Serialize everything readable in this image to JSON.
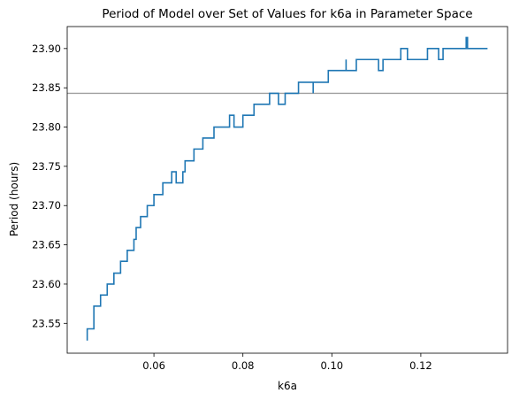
{
  "chart_data": {
    "type": "line",
    "title": "Period of Model over Set of Values for k6a in Parameter Space",
    "xlabel": "k6a",
    "ylabel": "Period (hours)",
    "xlim": [
      0.0405,
      0.1395
    ],
    "ylim": [
      23.512,
      23.928
    ],
    "xticks": [
      {
        "value": 0.06,
        "label": "0.06"
      },
      {
        "value": 0.08,
        "label": "0.08"
      },
      {
        "value": 0.1,
        "label": "0.10"
      },
      {
        "value": 0.12,
        "label": "0.12"
      }
    ],
    "yticks": [
      {
        "value": 23.55,
        "label": "23.55"
      },
      {
        "value": 23.6,
        "label": "23.60"
      },
      {
        "value": 23.65,
        "label": "23.65"
      },
      {
        "value": 23.7,
        "label": "23.70"
      },
      {
        "value": 23.75,
        "label": "23.75"
      },
      {
        "value": 23.8,
        "label": "23.80"
      },
      {
        "value": 23.85,
        "label": "23.85"
      },
      {
        "value": 23.9,
        "label": "23.90"
      }
    ],
    "grid": false,
    "reference_line": {
      "orientation": "horizontal",
      "y": 23.843,
      "color": "#a0a0a0"
    },
    "series": [
      {
        "color": "#1f77b4",
        "points": [
          [
            0.045,
            23.528
          ],
          [
            0.045,
            23.543
          ],
          [
            0.0465,
            23.543
          ],
          [
            0.0465,
            23.572
          ],
          [
            0.048,
            23.572
          ],
          [
            0.048,
            23.586
          ],
          [
            0.0495,
            23.586
          ],
          [
            0.0495,
            23.6
          ],
          [
            0.051,
            23.6
          ],
          [
            0.051,
            23.614
          ],
          [
            0.0525,
            23.614
          ],
          [
            0.0525,
            23.629
          ],
          [
            0.054,
            23.629
          ],
          [
            0.054,
            23.643
          ],
          [
            0.0555,
            23.643
          ],
          [
            0.0555,
            23.657
          ],
          [
            0.056,
            23.657
          ],
          [
            0.056,
            23.672
          ],
          [
            0.057,
            23.672
          ],
          [
            0.057,
            23.686
          ],
          [
            0.0585,
            23.686
          ],
          [
            0.0585,
            23.7
          ],
          [
            0.06,
            23.7
          ],
          [
            0.06,
            23.714
          ],
          [
            0.062,
            23.714
          ],
          [
            0.062,
            23.729
          ],
          [
            0.064,
            23.729
          ],
          [
            0.064,
            23.743
          ],
          [
            0.065,
            23.743
          ],
          [
            0.065,
            23.729
          ],
          [
            0.0665,
            23.729
          ],
          [
            0.0665,
            23.743
          ],
          [
            0.067,
            23.743
          ],
          [
            0.067,
            23.757
          ],
          [
            0.069,
            23.757
          ],
          [
            0.069,
            23.772
          ],
          [
            0.071,
            23.772
          ],
          [
            0.071,
            23.786
          ],
          [
            0.0735,
            23.786
          ],
          [
            0.0735,
            23.8
          ],
          [
            0.077,
            23.8
          ],
          [
            0.077,
            23.815
          ],
          [
            0.078,
            23.815
          ],
          [
            0.078,
            23.8
          ],
          [
            0.08,
            23.8
          ],
          [
            0.08,
            23.815
          ],
          [
            0.0825,
            23.815
          ],
          [
            0.0825,
            23.829
          ],
          [
            0.086,
            23.829
          ],
          [
            0.086,
            23.843
          ],
          [
            0.088,
            23.843
          ],
          [
            0.088,
            23.829
          ],
          [
            0.0895,
            23.829
          ],
          [
            0.0895,
            23.843
          ],
          [
            0.0925,
            23.843
          ],
          [
            0.0925,
            23.857
          ],
          [
            0.0958,
            23.857
          ],
          [
            0.0958,
            23.843
          ],
          [
            0.0958,
            23.857
          ],
          [
            0.0992,
            23.857
          ],
          [
            0.0992,
            23.872
          ],
          [
            0.1032,
            23.872
          ],
          [
            0.1032,
            23.886
          ],
          [
            0.1032,
            23.872
          ],
          [
            0.1055,
            23.872
          ],
          [
            0.1055,
            23.886
          ],
          [
            0.1105,
            23.886
          ],
          [
            0.1105,
            23.872
          ],
          [
            0.1115,
            23.872
          ],
          [
            0.1115,
            23.886
          ],
          [
            0.1155,
            23.886
          ],
          [
            0.1155,
            23.9
          ],
          [
            0.117,
            23.9
          ],
          [
            0.117,
            23.886
          ],
          [
            0.1215,
            23.886
          ],
          [
            0.1215,
            23.9
          ],
          [
            0.124,
            23.9
          ],
          [
            0.124,
            23.886
          ],
          [
            0.125,
            23.886
          ],
          [
            0.125,
            23.9
          ],
          [
            0.1302,
            23.9
          ],
          [
            0.1302,
            23.914
          ],
          [
            0.1305,
            23.914
          ],
          [
            0.1305,
            23.9
          ],
          [
            0.135,
            23.9
          ]
        ]
      }
    ]
  }
}
